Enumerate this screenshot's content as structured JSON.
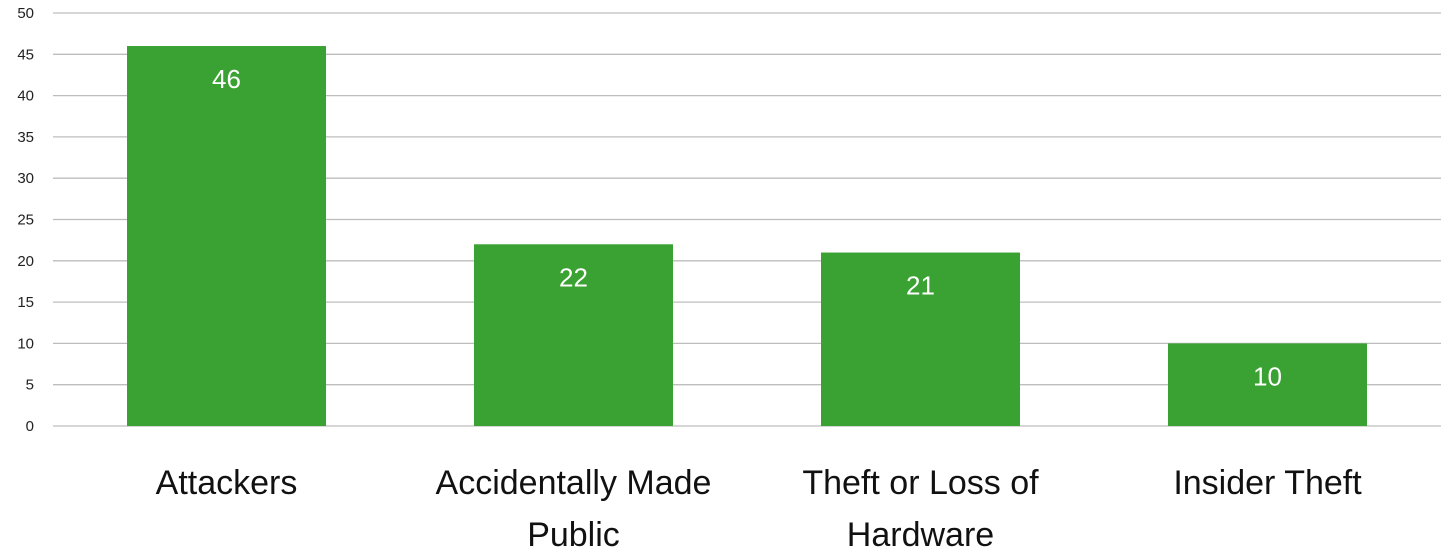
{
  "chart_data": {
    "type": "bar",
    "categories": [
      "Attackers",
      "Accidentally Made Public",
      "Theft or Loss of Hardware",
      "Insider Theft"
    ],
    "category_lines": [
      [
        "Attackers"
      ],
      [
        "Accidentally Made",
        "Public"
      ],
      [
        "Theft or Loss of",
        "Hardware"
      ],
      [
        "Insider Theft"
      ]
    ],
    "values": [
      46,
      22,
      21,
      10
    ],
    "data_labels": [
      "46",
      "22",
      "21",
      "10"
    ],
    "ylim": [
      0,
      50
    ],
    "yticks": [
      0,
      5,
      10,
      15,
      20,
      25,
      30,
      35,
      40,
      45,
      50
    ],
    "ytick_labels": [
      "0",
      "5",
      "10",
      "15",
      "20",
      "25",
      "30",
      "35",
      "40",
      "45",
      "50"
    ],
    "grid": true,
    "bar_color": "#3aa232",
    "grid_color": "#bdbdbd",
    "data_label_color": "#ffffff"
  }
}
